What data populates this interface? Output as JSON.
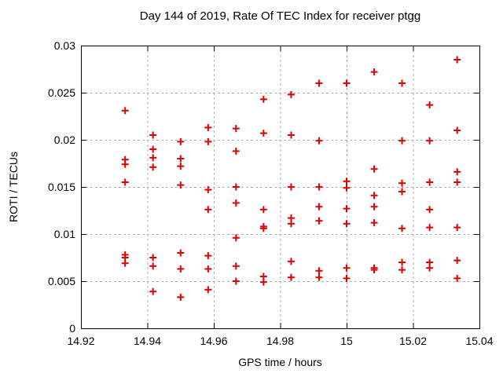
{
  "chart_data": {
    "type": "scatter",
    "title": "Day 144 of 2019, Rate Of TEC Index for receiver ptgg",
    "xlabel": "GPS time / hours",
    "ylabel": "ROTI / TECUs",
    "xlim": [
      14.92,
      15.04
    ],
    "ylim": [
      0,
      0.03
    ],
    "xtick_values": [
      14.92,
      14.94,
      14.96,
      14.98,
      15.0,
      15.02,
      15.04
    ],
    "xtick_labels": [
      "14.92",
      "14.94",
      "14.96",
      "14.98",
      "15",
      "15.02",
      "15.04"
    ],
    "ytick_values": [
      0,
      0.005,
      0.01,
      0.015,
      0.02,
      0.025,
      0.03
    ],
    "ytick_labels": [
      "0",
      "0.005",
      "0.01",
      "0.015",
      "0.02",
      "0.025",
      "0.03"
    ],
    "grid": true,
    "legend": "none",
    "marker_shape": "plus",
    "marker_color": "#e00000",
    "grid_color": "#b0b0b0",
    "axis_color": "#000000",
    "epochs": [
      {
        "t": 14.9333,
        "roti": [
          0.0231,
          0.0179,
          0.0174,
          0.0155,
          0.0078,
          0.0075,
          0.0069
        ]
      },
      {
        "t": 14.9417,
        "roti": [
          0.0205,
          0.019,
          0.0181,
          0.0171,
          0.0075,
          0.0066,
          0.0039
        ]
      },
      {
        "t": 14.95,
        "roti": [
          0.0198,
          0.018,
          0.0172,
          0.0152,
          0.008,
          0.0063,
          0.0033
        ]
      },
      {
        "t": 14.9583,
        "roti": [
          0.0213,
          0.0198,
          0.0147,
          0.0126,
          0.0077,
          0.0063,
          0.0041
        ]
      },
      {
        "t": 14.9667,
        "roti": [
          0.0212,
          0.0188,
          0.015,
          0.0133,
          0.0096,
          0.0066,
          0.005
        ]
      },
      {
        "t": 14.975,
        "roti": [
          0.0243,
          0.0207,
          0.0126,
          0.0108,
          0.0106,
          0.0055,
          0.0049
        ]
      },
      {
        "t": 14.9833,
        "roti": [
          0.0248,
          0.0205,
          0.015,
          0.0117,
          0.0111,
          0.0071,
          0.0054
        ]
      },
      {
        "t": 14.9917,
        "roti": [
          0.026,
          0.0199,
          0.015,
          0.0129,
          0.0114,
          0.0061,
          0.0054
        ]
      },
      {
        "t": 15.0,
        "roti": [
          0.026,
          0.0156,
          0.0149,
          0.0127,
          0.0111,
          0.0064,
          0.0053
        ]
      },
      {
        "t": 15.0083,
        "roti": [
          0.0272,
          0.0169,
          0.0141,
          0.0129,
          0.0112,
          0.0064,
          0.0062
        ]
      },
      {
        "t": 15.0167,
        "roti": [
          0.026,
          0.0199,
          0.0154,
          0.0145,
          0.0106,
          0.007,
          0.0062
        ]
      },
      {
        "t": 15.025,
        "roti": [
          0.0237,
          0.0199,
          0.0155,
          0.0126,
          0.0107,
          0.007,
          0.0064
        ]
      },
      {
        "t": 15.0333,
        "roti": [
          0.0285,
          0.021,
          0.0166,
          0.0155,
          0.0107,
          0.0072,
          0.0053
        ]
      }
    ]
  }
}
